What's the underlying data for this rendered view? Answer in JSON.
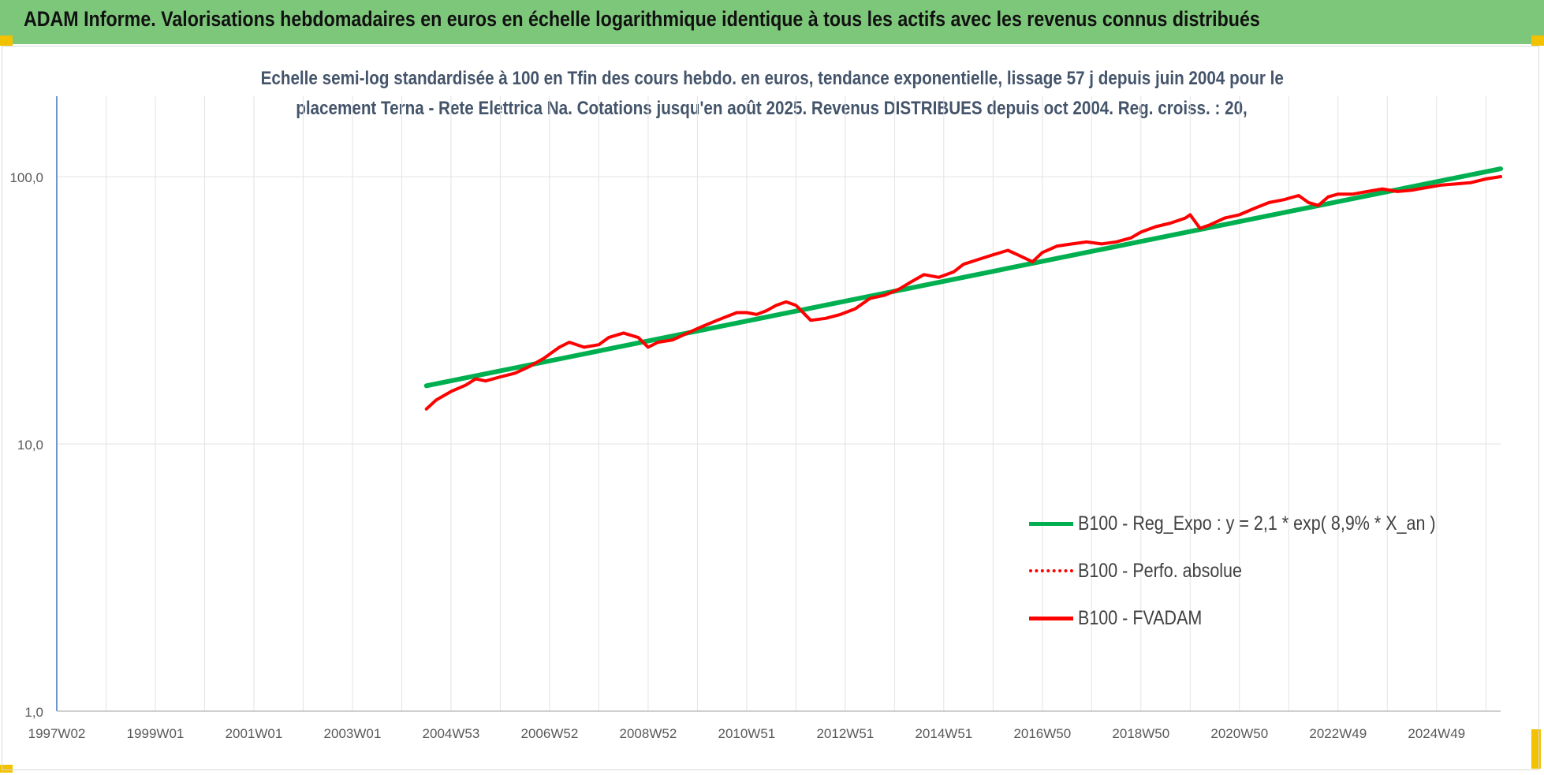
{
  "banner": {
    "title": "ADAM Informe. Valorisations hebdomadaires en euros en échelle logarithmique identique à tous les actifs avec les revenus connus distribués"
  },
  "chart_data": {
    "type": "line",
    "title_line1": "Echelle semi-log standardisée à 100 en Tfin des cours hebdo. en euros, tendance exponentielle, lissage 57 j depuis juin 2004 pour le",
    "title_line2": "placement Terna - Rete Elettrica Na. Cotations jusqu'en août 2025. Revenus DISTRIBUES depuis oct 2004. Reg. croiss. : 20,",
    "y_scale": "log",
    "ylim": [
      1,
      200
    ],
    "y_ticks": [
      {
        "value": 1,
        "label": "1,0"
      },
      {
        "value": 10,
        "label": "10,0"
      },
      {
        "value": 100,
        "label": "100,0"
      }
    ],
    "x_range": [
      1997.0,
      2026.3
    ],
    "x_ticks": [
      {
        "x": 1997.0,
        "label": "1997W02"
      },
      {
        "x": 1999.0,
        "label": "1999W01"
      },
      {
        "x": 2001.0,
        "label": "2001W01"
      },
      {
        "x": 2003.0,
        "label": "2003W01"
      },
      {
        "x": 2005.0,
        "label": "2004W53"
      },
      {
        "x": 2007.0,
        "label": "2006W52"
      },
      {
        "x": 2009.0,
        "label": "2008W52"
      },
      {
        "x": 2011.0,
        "label": "2010W51"
      },
      {
        "x": 2013.0,
        "label": "2012W51"
      },
      {
        "x": 2015.0,
        "label": "2014W51"
      },
      {
        "x": 2017.0,
        "label": "2016W50"
      },
      {
        "x": 2019.0,
        "label": "2018W50"
      },
      {
        "x": 2021.0,
        "label": "2020W50"
      },
      {
        "x": 2023.0,
        "label": "2022W49"
      },
      {
        "x": 2025.0,
        "label": "2024W49"
      }
    ],
    "grid": true,
    "legend_position": "lower-right",
    "series": [
      {
        "name": "B100 - Reg_Expo : y = 2,1 * exp( 8,9% *  X_an )",
        "color": "#00b050",
        "style": "solid",
        "x": [
          2004.5,
          2026.3
        ],
        "y": [
          16.5,
          107
        ]
      },
      {
        "name": "B100 - Perfo. absolue",
        "color": "#ff0000",
        "style": "dotted",
        "x": [],
        "y": []
      },
      {
        "name": "B100 - FVADAM",
        "color": "#ff0000",
        "style": "solid",
        "x": [
          2004.5,
          2004.7,
          2005.0,
          2005.3,
          2005.5,
          2005.7,
          2006.0,
          2006.3,
          2006.6,
          2006.9,
          2007.2,
          2007.4,
          2007.7,
          2008.0,
          2008.2,
          2008.5,
          2008.8,
          2009.0,
          2009.2,
          2009.5,
          2009.8,
          2010.0,
          2010.2,
          2010.5,
          2010.8,
          2011.0,
          2011.2,
          2011.4,
          2011.6,
          2011.8,
          2012.0,
          2012.3,
          2012.6,
          2012.9,
          2013.2,
          2013.5,
          2013.8,
          2014.1,
          2014.3,
          2014.6,
          2014.9,
          2015.2,
          2015.4,
          2015.7,
          2016.0,
          2016.3,
          2016.5,
          2016.8,
          2017.0,
          2017.3,
          2017.6,
          2017.9,
          2018.2,
          2018.5,
          2018.8,
          2019.0,
          2019.3,
          2019.6,
          2019.9,
          2020.0,
          2020.2,
          2020.4,
          2020.7,
          2021.0,
          2021.3,
          2021.6,
          2021.9,
          2022.2,
          2022.4,
          2022.6,
          2022.8,
          2023.0,
          2023.3,
          2023.6,
          2023.9,
          2024.2,
          2024.5,
          2024.8,
          2025.1,
          2025.4,
          2025.7,
          2026.0,
          2026.3
        ],
        "y": [
          13.5,
          14.6,
          15.7,
          16.6,
          17.5,
          17.2,
          17.8,
          18.4,
          19.5,
          21,
          23,
          24,
          23,
          23.5,
          25,
          26,
          25,
          23,
          24,
          24.5,
          26,
          27,
          28,
          29.5,
          31,
          31,
          30.5,
          31.5,
          33,
          34,
          33,
          29,
          29.5,
          30.5,
          32,
          35,
          36,
          38,
          40,
          43,
          42,
          44,
          47,
          49,
          51,
          53,
          51,
          48,
          52,
          55,
          56,
          57,
          56,
          57,
          59,
          62,
          65,
          67,
          70,
          72,
          64,
          66,
          70,
          72,
          76,
          80,
          82,
          85,
          80,
          78,
          84,
          86,
          86,
          88,
          90,
          88,
          89,
          91,
          93,
          94,
          95,
          98,
          100
        ]
      }
    ]
  }
}
